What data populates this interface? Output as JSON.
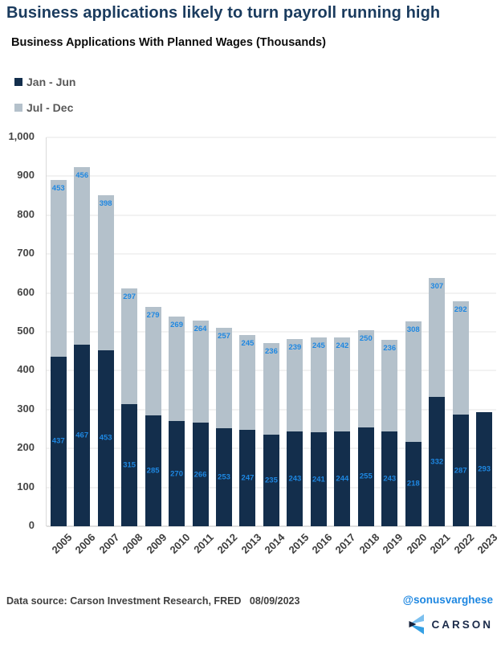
{
  "header": {
    "title": "Business applications likely to turn payroll running high"
  },
  "chart": {
    "subtitle": "Business Applications With Planned Wages (Thousands)"
  },
  "chart_data": {
    "type": "bar",
    "stacked": true,
    "title": "Business Applications With Planned Wages (Thousands)",
    "categories": [
      "2005",
      "2006",
      "2007",
      "2008",
      "2009",
      "2010",
      "2011",
      "2012",
      "2013",
      "2014",
      "2015",
      "2016",
      "2017",
      "2018",
      "2019",
      "2020",
      "2021",
      "2022",
      "2023"
    ],
    "series": [
      {
        "name": "Jan - Jun",
        "color": "#132e4c",
        "values": [
          437,
          467,
          453,
          315,
          285,
          270,
          266,
          253,
          247,
          235,
          243,
          241,
          244,
          255,
          243,
          218,
          332,
          287,
          293
        ]
      },
      {
        "name": "Jul - Dec",
        "color": "#b4c1cb",
        "values": [
          453,
          456,
          398,
          297,
          279,
          269,
          264,
          257,
          245,
          236,
          239,
          245,
          242,
          250,
          236,
          308,
          307,
          292,
          null
        ]
      }
    ],
    "ylim": [
      0,
      1000
    ],
    "ytick_step": 100,
    "yticks": [
      "0",
      "100",
      "200",
      "300",
      "400",
      "500",
      "600",
      "700",
      "800",
      "900",
      "1,000"
    ],
    "grid": true,
    "legend_position": "top-left",
    "value_label_color": "#1e87e1"
  },
  "footer": {
    "source": "Data source: Carson Investment Research, FRED   08/09/2023",
    "handle": "@sonusvarghese",
    "logo_text": "CARSON"
  }
}
